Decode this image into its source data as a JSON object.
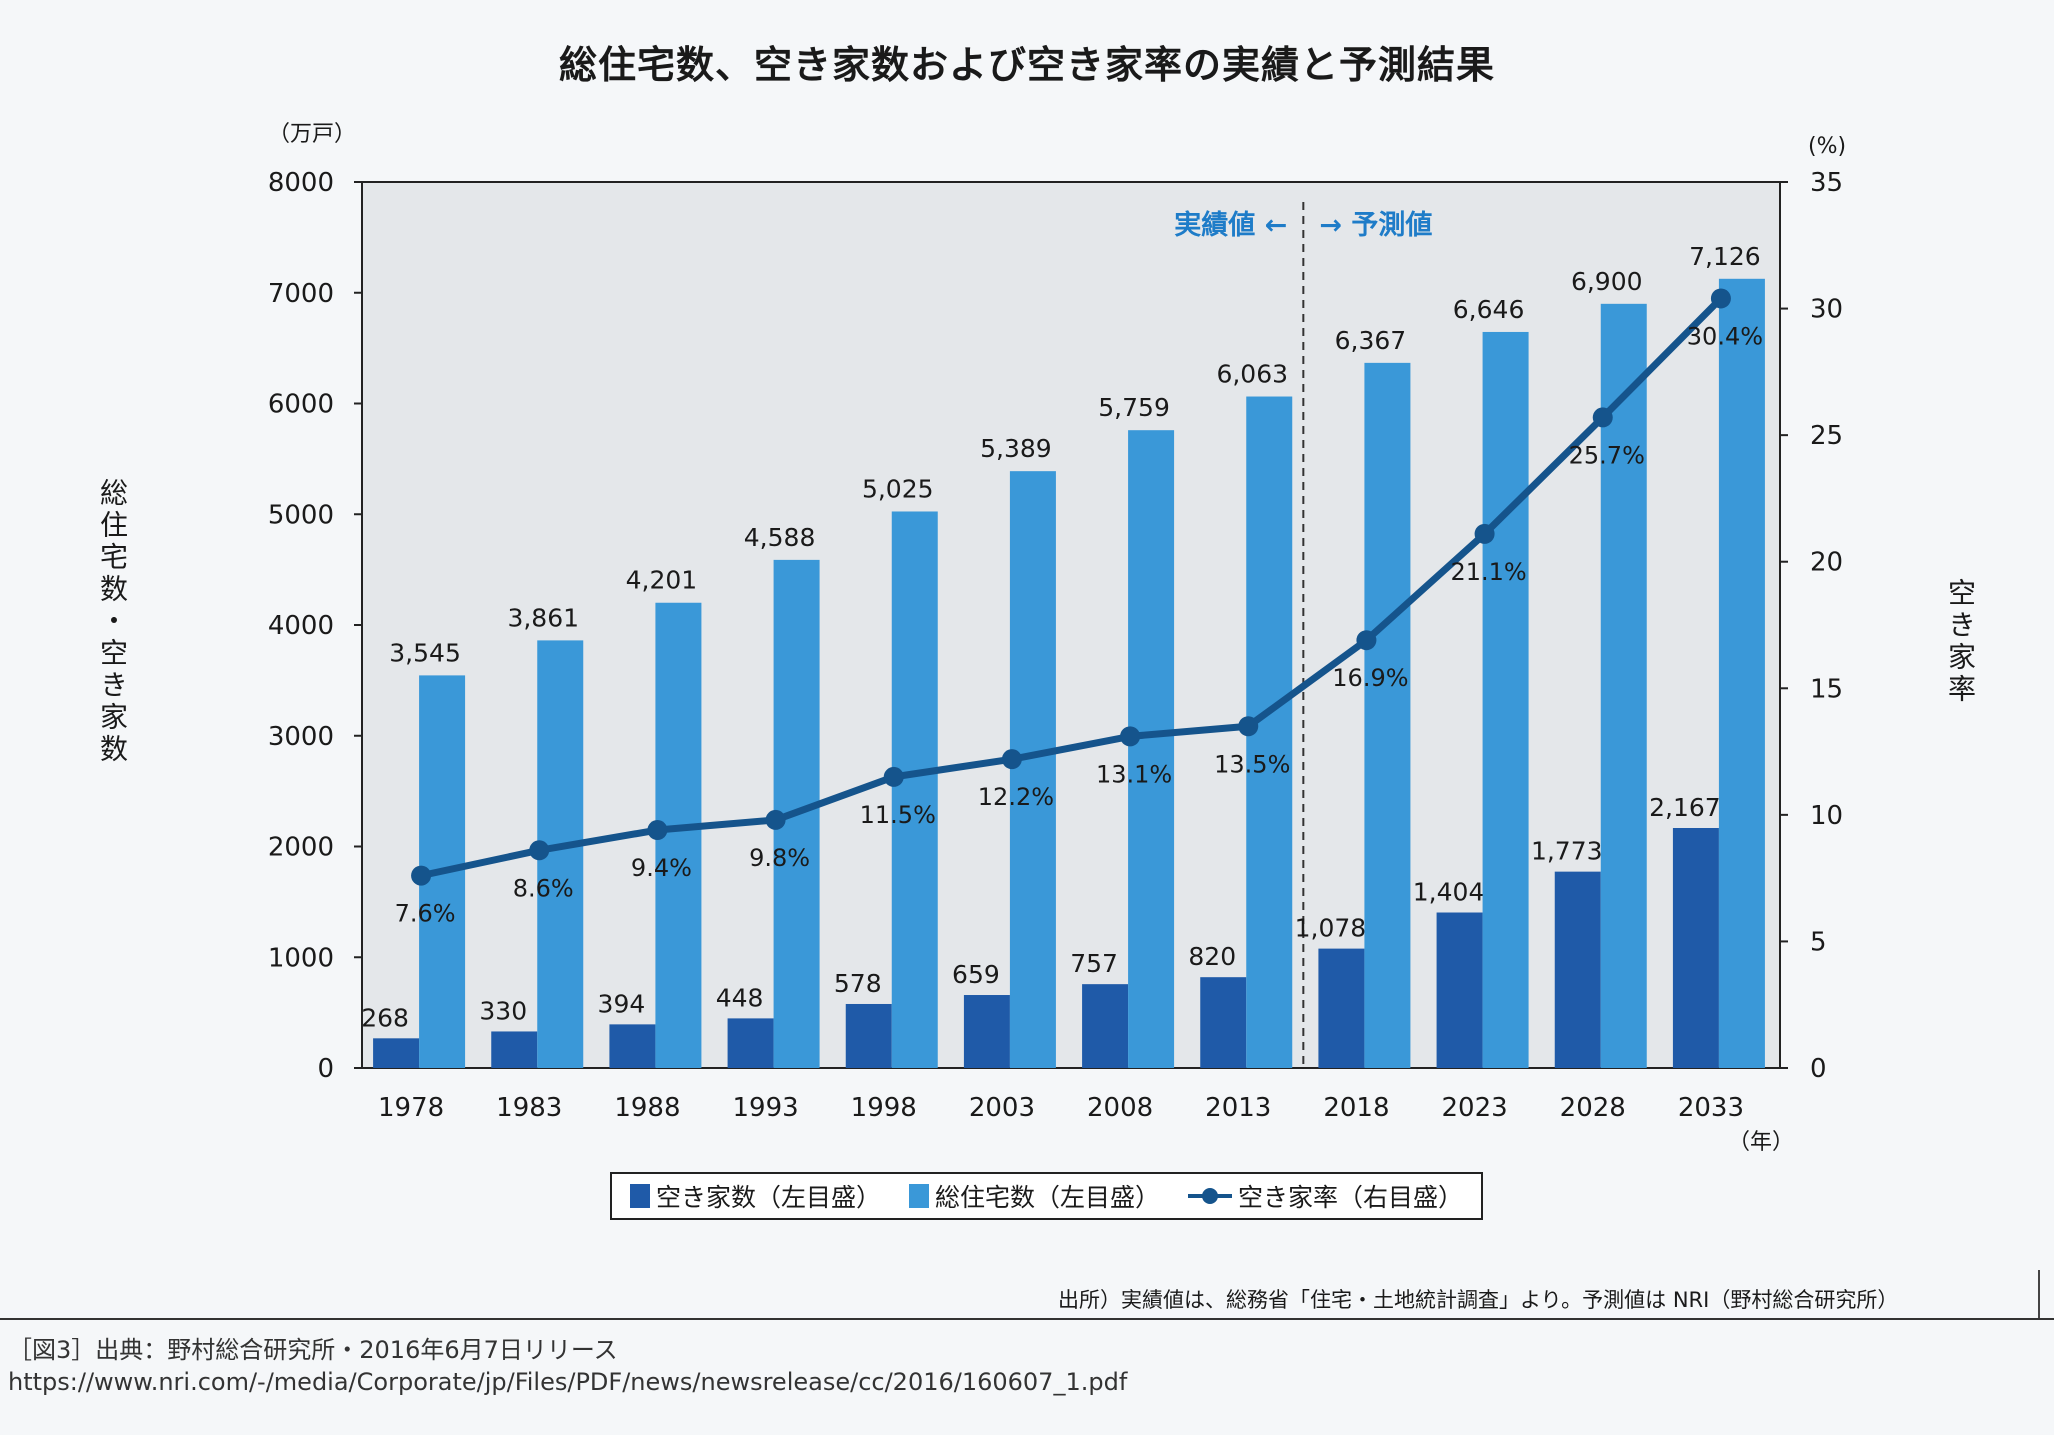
{
  "title": "総住宅数、空き家数および空き家率の実績と予測結果",
  "axes": {
    "left_unit": "（万戸）",
    "right_unit": "(%)",
    "x_unit": "（年）",
    "left_label": "総住宅数・空き家数",
    "right_label": "空き家率"
  },
  "annotation": {
    "actual": "実績値",
    "actual_arrow": "←",
    "forecast_arrow": "→",
    "forecast": "予測値"
  },
  "legend": {
    "items": [
      {
        "label": "空き家数（左目盛）",
        "type": "bar",
        "color": "#1f5aa8"
      },
      {
        "label": "総住宅数（左目盛）",
        "type": "bar",
        "color": "#3a98d8"
      },
      {
        "label": "空き家率（右目盛）",
        "type": "line",
        "color": "#15548c"
      }
    ]
  },
  "source_note": "出所）実績値は、総務省「住宅・土地統計調査」より。予測値は NRI（野村総合研究所）",
  "caption": "［図3］出典：野村総合研究所・2016年6月7日リリース",
  "url": "https://www.nri.com/-/media/Corporate/jp/Files/PDF/news/newsrelease/cc/2016/160607_1.pdf",
  "colors": {
    "plot_background": "#e4e7ea",
    "vacant_bar": "#1f5aa8",
    "total_bar": "#3a98d8",
    "rate_line": "#15548c",
    "annotation_text": "#1e7cc8"
  },
  "chart_data": {
    "type": "bar+line",
    "title": "総住宅数、空き家数および空き家率の実績と予測結果",
    "categories": [
      "1978",
      "1983",
      "1988",
      "1993",
      "1998",
      "2003",
      "2008",
      "2013",
      "2018",
      "2023",
      "2028",
      "2033"
    ],
    "forecast_start_index": 8,
    "series": [
      {
        "name": "空き家数（左目盛）",
        "type": "bar",
        "axis": "left",
        "values": [
          268,
          330,
          394,
          448,
          578,
          659,
          757,
          820,
          1078,
          1404,
          1773,
          2167
        ],
        "labels": [
          "268",
          "330",
          "394",
          "448",
          "578",
          "659",
          "757",
          "820",
          "1,078",
          "1,404",
          "1,773",
          "2,167"
        ]
      },
      {
        "name": "総住宅数（左目盛）",
        "type": "bar",
        "axis": "left",
        "values": [
          3545,
          3861,
          4201,
          4588,
          5025,
          5389,
          5759,
          6063,
          6367,
          6646,
          6900,
          7126
        ],
        "labels": [
          "3,545",
          "3,861",
          "4,201",
          "4,588",
          "5,025",
          "5,389",
          "5,759",
          "6,063",
          "6,367",
          "6,646",
          "6,900",
          "7,126"
        ]
      },
      {
        "name": "空き家率（右目盛）",
        "type": "line",
        "axis": "right",
        "values": [
          7.6,
          8.6,
          9.4,
          9.8,
          11.5,
          12.2,
          13.1,
          13.5,
          16.9,
          21.1,
          25.7,
          30.4
        ],
        "labels": [
          "7.6%",
          "8.6%",
          "9.4%",
          "9.8%",
          "11.5%",
          "12.2%",
          "13.1%",
          "13.5%",
          "16.9%",
          "21.1%",
          "25.7%",
          "30.4%"
        ]
      }
    ],
    "y_left": {
      "label": "総住宅数・空き家数",
      "unit": "万戸",
      "range": [
        0,
        8000
      ],
      "ticks": [
        "0",
        "1000",
        "2000",
        "3000",
        "4000",
        "5000",
        "6000",
        "7000",
        "8000"
      ]
    },
    "y_right": {
      "label": "空き家率",
      "unit": "%",
      "range": [
        0,
        35
      ],
      "ticks": [
        "0",
        "5",
        "10",
        "15",
        "20",
        "25",
        "30",
        "35"
      ]
    },
    "xlabel": "年",
    "grid": false,
    "legend_position": "bottom"
  }
}
